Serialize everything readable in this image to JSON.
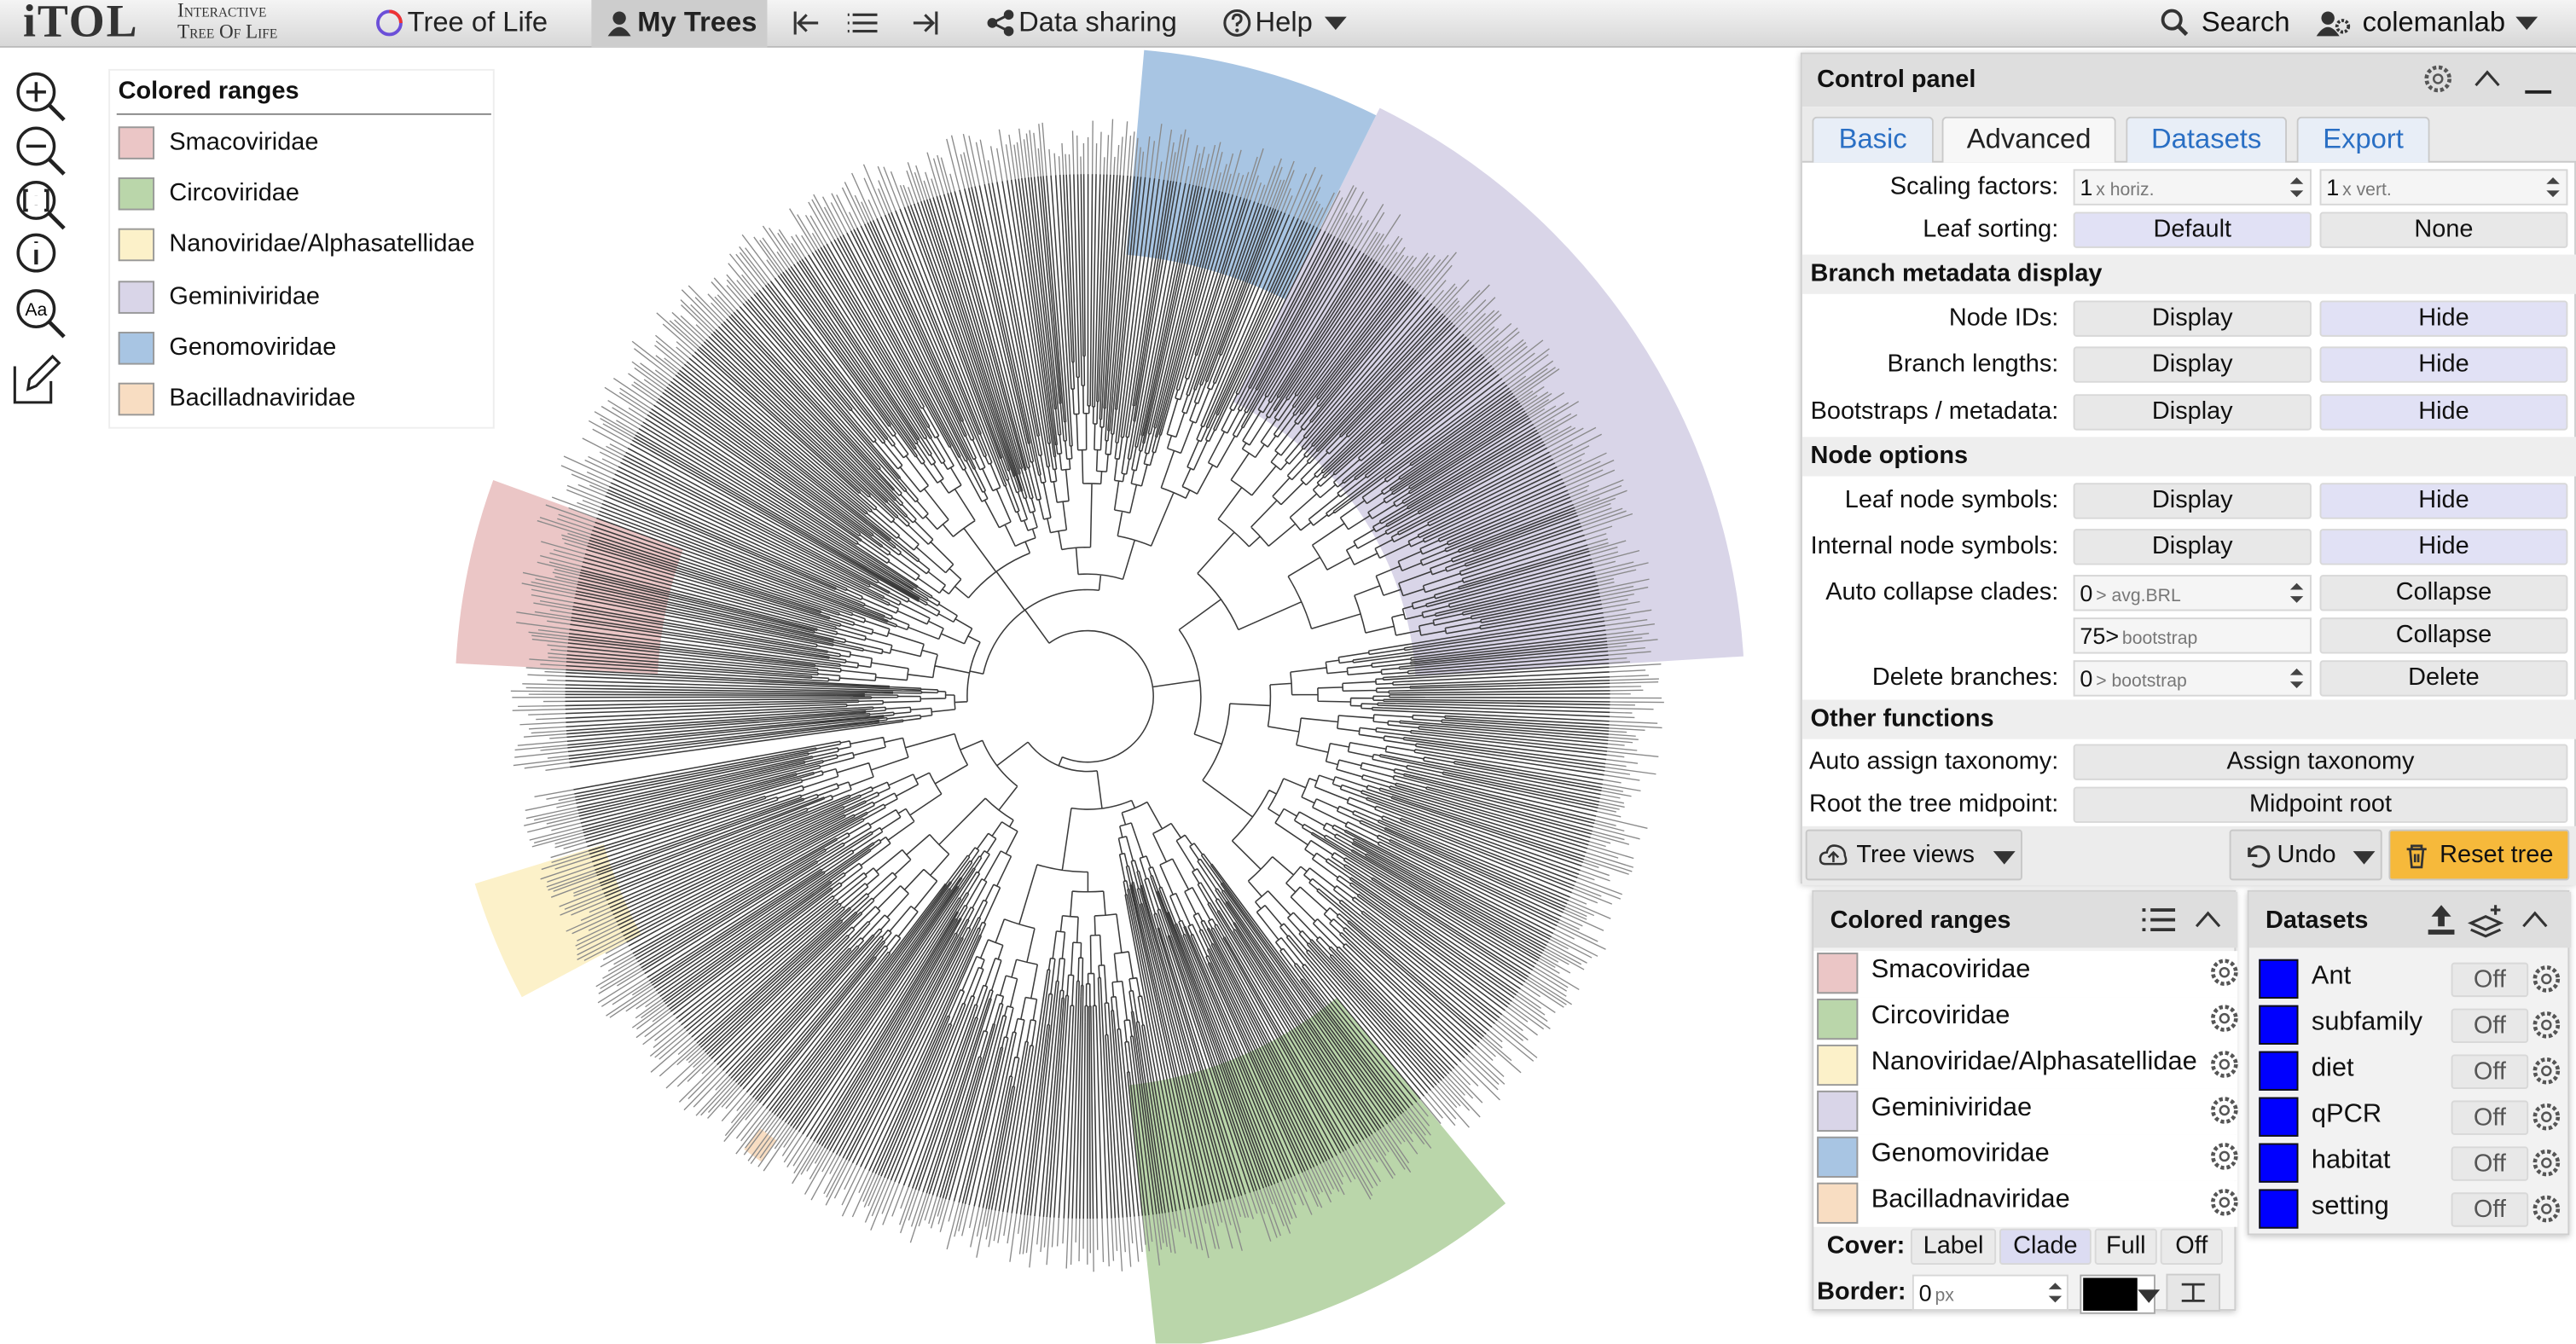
{
  "header": {
    "logo": "iTOL",
    "logo_line1": "Interactive",
    "logo_line2": "Tree Of Life",
    "nav": [
      "Tree of Life",
      "My Trees",
      "Data sharing",
      "Help"
    ],
    "search": "Search",
    "user": "colemanlab"
  },
  "toolbar": {
    "font_icon": "Aa"
  },
  "legend": {
    "title": "Colored ranges",
    "items": [
      {
        "name": "Smacoviridae",
        "color": "#ebc6c6"
      },
      {
        "name": "Circoviridae",
        "color": "#bad6aa"
      },
      {
        "name": "Nanoviridae/Alphasatellidae",
        "color": "#fcf1c9"
      },
      {
        "name": "Geminiviridae",
        "color": "#d9d5e8"
      },
      {
        "name": "Genomoviridae",
        "color": "#a8c5e3"
      },
      {
        "name": "Bacilladnaviridae",
        "color": "#f8ddc2"
      }
    ]
  },
  "control_panel": {
    "title": "Control panel",
    "tabs": [
      "Basic",
      "Advanced",
      "Datasets",
      "Export"
    ],
    "selected_tab": 1,
    "scaling": {
      "label": "Scaling factors:",
      "inputs": [
        {
          "value": "1",
          "unit": "x horiz."
        },
        {
          "value": "1",
          "unit": "x vert."
        }
      ]
    },
    "leaf_sorting": {
      "label": "Leaf sorting:",
      "options": [
        "Default",
        "None"
      ],
      "selected": 0
    },
    "branch_metadata": {
      "title": "Branch metadata display",
      "rows": [
        {
          "label": "Node IDs:",
          "options": [
            "Display",
            "Hide"
          ],
          "selected": 1
        },
        {
          "label": "Branch lengths:",
          "options": [
            "Display",
            "Hide"
          ],
          "selected": 1
        },
        {
          "label": "Bootstraps / metadata:",
          "options": [
            "Display",
            "Hide"
          ],
          "selected": 1
        }
      ]
    },
    "node_options": {
      "title": "Node options",
      "rows": [
        {
          "label": "Leaf node symbols:",
          "options": [
            "Display",
            "Hide"
          ],
          "selected": 1
        },
        {
          "label": "Internal node symbols:",
          "options": [
            "Display",
            "Hide"
          ],
          "selected": 1
        }
      ],
      "auto_collapse": {
        "label": "Auto collapse clades:",
        "inputs": [
          {
            "value": "0",
            "unit": "> avg.BRL",
            "button": "Collapse"
          },
          {
            "value": "75>",
            "unit": "bootstrap",
            "button": "Collapse"
          }
        ]
      },
      "delete": {
        "label": "Delete branches:",
        "value": "0",
        "unit": "> bootstrap",
        "button": "Delete"
      }
    },
    "other_functions": {
      "title": "Other functions",
      "rows": [
        {
          "label": "Auto assign taxonomy:",
          "button": "Assign taxonomy"
        },
        {
          "label": "Root the tree midpoint:",
          "button": "Midpoint root"
        }
      ]
    },
    "buttons": [
      "Tree views",
      "Undo",
      "Reset tree"
    ]
  },
  "colored_ranges_panel": {
    "title": "Colored ranges",
    "cover": {
      "label": "Cover:",
      "options": [
        "Label",
        "Clade",
        "Full",
        "Off"
      ],
      "selected": 1
    },
    "border": {
      "label": "Border:",
      "value": "0",
      "unit": "px",
      "color": "#000000"
    }
  },
  "datasets_panel": {
    "title": "Datasets",
    "items": [
      {
        "name": "Ant",
        "state": "Off",
        "color": "#0000ff"
      },
      {
        "name": "subfamily",
        "state": "Off",
        "color": "#0000ff"
      },
      {
        "name": "diet",
        "state": "Off",
        "color": "#0000ff"
      },
      {
        "name": "qPCR",
        "state": "Off",
        "color": "#0000ff"
      },
      {
        "name": "habitat",
        "state": "Off",
        "color": "#0000ff"
      },
      {
        "name": "setting",
        "state": "Off",
        "color": "#0000ff"
      }
    ]
  }
}
